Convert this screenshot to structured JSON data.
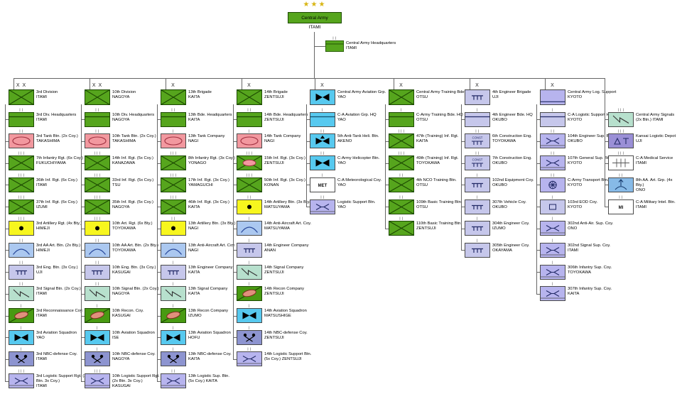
{
  "colors": {
    "unit_green": "#56a51d",
    "unit_green_dark": "#1d4a02",
    "armor_pink": "#f2989f",
    "armor_oval": "#a03040",
    "artillery_yellow": "#f7f61e",
    "air_defense_blue": "#abc8f0",
    "air_defense_glyph": "#2a4a9c",
    "engineer_lavender": "#c6c7eb",
    "engineer_glyph": "#222a66",
    "signal_teal": "#b7e0cd",
    "recon_green": "#489a12",
    "recon_oval": "#e0907c",
    "aviation_cyan": "#57c9ef",
    "nbc_periwinkle": "#8d94d0",
    "logistic_lavender": "#b7b4ee",
    "depot_purple": "#9a8fd6",
    "aa_group_blue": "#87bae7",
    "white": "#ffffff",
    "box_border": "#4a4a4a",
    "line": "#666666",
    "star_gold": "#d8b513",
    "text": "#000000"
  },
  "root": {
    "stars": "★★★",
    "name": "Central Army",
    "location": "ITAMI"
  },
  "headquarters": {
    "name": "Central Army Headquarters",
    "location": "ITAMI",
    "echelon": "| |",
    "symbol": "hq-green"
  },
  "columns": [
    {
      "head": {
        "name": "3rd Division",
        "location": "ITAMI",
        "symbol": "infantry",
        "echelon": "X X"
      },
      "units": [
        {
          "name": "3rd Div. Headquarters",
          "location": "ITAMI",
          "symbol": "hq-green",
          "echelon": "| |"
        },
        {
          "name": "3rd Tank Btn. (2x Coy.)",
          "location": "TAKASHIMA",
          "symbol": "armor",
          "echelon": "| |"
        },
        {
          "name": "7th Infantry Rgt. (6x Coy.)",
          "location": "FUKUCHIYAMA",
          "symbol": "infantry",
          "echelon": "| | |"
        },
        {
          "name": "36th Inf. Rgt. (6x Coy.)",
          "location": "ITAMI",
          "symbol": "infantry",
          "echelon": "| | |"
        },
        {
          "name": "37th Inf. Rgt. (6x Coy.)",
          "location": "IZUMI",
          "symbol": "infantry",
          "echelon": "| | |"
        },
        {
          "name": "3rd Artillery Rgt. (4x Bty.)",
          "location": "HIMEJI",
          "symbol": "artillery",
          "echelon": "| | |"
        },
        {
          "name": "3rd AA Art. Btn. (2x Bty.)",
          "location": "HIMEJI",
          "symbol": "air-defense",
          "echelon": "| |"
        },
        {
          "name": "3rd Eng. Btn. (3x Coy.)",
          "location": "UJI",
          "symbol": "engineer",
          "echelon": "| |"
        },
        {
          "name": "3rd Signal Btn. (2x Coy.)",
          "location": "ITAMI",
          "symbol": "signal",
          "echelon": "| |"
        },
        {
          "name": "3rd Reconnaissance Coy.",
          "location": "ITAMI",
          "symbol": "recon",
          "echelon": "|"
        },
        {
          "name": "3rd Aviation Squadron",
          "location": "YAO",
          "symbol": "aviation",
          "echelon": "|"
        },
        {
          "name": "3rd NBC-defense Coy.",
          "location": "ITAMI",
          "symbol": "nbc",
          "echelon": "|"
        },
        {
          "name": "3rd Logistic Support Rgt. (2x Btn. 3x Coy.)",
          "location": "ITAMI",
          "symbol": "logistic",
          "echelon": "| | |"
        }
      ]
    },
    {
      "head": {
        "name": "10th Division",
        "location": "NAGOYA",
        "symbol": "infantry",
        "echelon": "X X"
      },
      "units": [
        {
          "name": "10th Div. Headquarters",
          "location": "NAGOYA",
          "symbol": "hq-green",
          "echelon": "| |"
        },
        {
          "name": "10th Tank Btn. (2x Coy.)",
          "location": "TAKASHIMA",
          "symbol": "armor",
          "echelon": "| |"
        },
        {
          "name": "14th Inf. Rgt. (5x Coy.)",
          "location": "KANAZAWA",
          "symbol": "infantry",
          "echelon": "| | |"
        },
        {
          "name": "33rd Inf. Rgt. (5x Coy.)",
          "location": "TSU",
          "symbol": "infantry",
          "echelon": "| | |"
        },
        {
          "name": "35th Inf. Rgt. (5x Coy.)",
          "location": "NAGOYA",
          "symbol": "infantry",
          "echelon": "| | |"
        },
        {
          "name": "10th Art. Rgt. (6x Bty.)",
          "location": "TOYOKAWA",
          "symbol": "artillery",
          "echelon": "| | |"
        },
        {
          "name": "10th AA Art. Btn. (2x Bty.)",
          "location": "TOYOKAWA",
          "symbol": "air-defense",
          "echelon": "| |"
        },
        {
          "name": "10th Eng. Btn. (3x Coy.)",
          "location": "KASUGAI",
          "symbol": "engineer",
          "echelon": "| |"
        },
        {
          "name": "10th Signal Btn. (2x Coy.)",
          "location": "NAGOYA",
          "symbol": "signal",
          "echelon": "| |"
        },
        {
          "name": "10th Recon. Coy.",
          "location": "KASUGAI",
          "symbol": "recon",
          "echelon": "|"
        },
        {
          "name": "10th Aviation Squadron",
          "location": "ISE",
          "symbol": "aviation",
          "echelon": "|"
        },
        {
          "name": "10th NBC-defense Coy.",
          "location": "NAGOYA",
          "symbol": "nbc",
          "echelon": "|"
        },
        {
          "name": "10th Logistic Support Rgt. (2x Btn. 3x Coy.)",
          "location": "KASUGAI",
          "symbol": "logistic",
          "echelon": "| | |"
        }
      ]
    },
    {
      "head": {
        "name": "13th Brigade",
        "location": "KAITA",
        "symbol": "infantry",
        "echelon": "X"
      },
      "units": [
        {
          "name": "13th Bde. Headquarters",
          "location": "KAITA",
          "symbol": "hq-green",
          "echelon": "| |"
        },
        {
          "name": "13th Tank Company",
          "location": "NAGI",
          "symbol": "armor",
          "echelon": "|"
        },
        {
          "name": "8th Infantry Rgt. (3x Coy.)",
          "location": "YONAGO",
          "symbol": "infantry",
          "echelon": "| | |"
        },
        {
          "name": "17th Inf. Rgt. (3x Coy.)",
          "location": "YAMAGUCHI",
          "symbol": "infantry",
          "echelon": "| | |"
        },
        {
          "name": "46th Inf. Rgt. (3x Coy.)",
          "location": "KAITA",
          "symbol": "infantry",
          "echelon": "| | |"
        },
        {
          "name": "13th Artillery Btn. (3x Bty.)",
          "location": "NAGI",
          "symbol": "artillery",
          "echelon": "| |"
        },
        {
          "name": "13th Anti-Aircraft Art. Coy.",
          "location": "NAGI",
          "symbol": "air-defense",
          "echelon": "|"
        },
        {
          "name": "13th Engineer Company",
          "location": "KAITA",
          "symbol": "engineer",
          "echelon": "|"
        },
        {
          "name": "13th Signal Company",
          "location": "KAITA",
          "symbol": "signal",
          "echelon": "|"
        },
        {
          "name": "13th Recon Company",
          "location": "IZUMO",
          "symbol": "recon",
          "echelon": "|"
        },
        {
          "name": "13th Aviation Squadron",
          "location": "HOFU",
          "symbol": "aviation",
          "echelon": "|"
        },
        {
          "name": "13th NBC-defense Coy.",
          "location": "KAITA",
          "symbol": "nbc",
          "echelon": "|"
        },
        {
          "name": "13th Logistic Sup. Btn.",
          "location": "(5x Coy.) KAITA",
          "symbol": "logistic",
          "echelon": "| |"
        }
      ]
    },
    {
      "head": {
        "name": "14th Brigade",
        "location": "ZENTSUJI",
        "symbol": "infantry",
        "echelon": "X"
      },
      "units": [
        {
          "name": "14th Bde. Headquarters",
          "location": "ZENTSUJI",
          "symbol": "hq-green",
          "echelon": "| |"
        },
        {
          "name": "14th Tank Company",
          "location": "NAGI",
          "symbol": "armor",
          "echelon": "|"
        },
        {
          "name": "15th Inf. Rgt. (3x Coy.)",
          "location": "ZENTSUJI",
          "symbol": "mech-infantry",
          "echelon": "| | |"
        },
        {
          "name": "50th Inf. Rgt. (3x Coy.)",
          "location": "KONAN",
          "symbol": "infantry",
          "echelon": "| | |"
        },
        {
          "name": "14th Artillery Btn. (3x Bty.)",
          "location": "MATSUYAMA",
          "symbol": "artillery",
          "echelon": "| |"
        },
        {
          "name": "14th Anti-Aircraft Art. Coy.",
          "location": "MATSUYAMA",
          "symbol": "air-defense",
          "echelon": "|"
        },
        {
          "name": "14th Engineer Company",
          "location": "ANAN",
          "symbol": "engineer",
          "echelon": "|"
        },
        {
          "name": "14th Signal Company",
          "location": "ZENTSUJI",
          "symbol": "signal",
          "echelon": "|"
        },
        {
          "name": "14th Recon Company",
          "location": "ZENTSUJI",
          "symbol": "recon",
          "echelon": "|"
        },
        {
          "name": "14th Aviation Squadron",
          "location": "MATSUSHIGE",
          "symbol": "aviation",
          "echelon": "|"
        },
        {
          "name": "14th NBC-defense Coy.",
          "location": "ZENTSUJI",
          "symbol": "nbc",
          "echelon": "|"
        },
        {
          "name": "14th Logistic Support Btn.",
          "location": "(5x Coy.) ZENTSUJI",
          "symbol": "logistic",
          "echelon": "| |"
        }
      ]
    },
    {
      "head": {
        "name": "Central Army Aviation Grp.",
        "location": "YAO",
        "symbol": "aviation",
        "echelon": "X"
      },
      "units": [
        {
          "name": "C-A Aviation Grp. HQ",
          "location": "YAO",
          "symbol": "hq-cyan",
          "echelon": "|"
        },
        {
          "name": "5th Anti-Tank Heli. Btn.",
          "location": "AKENO",
          "symbol": "attack-helicopter",
          "echelon": "| |"
        },
        {
          "name": "C-Army Helicopter Btn.",
          "location": "YAO",
          "symbol": "aviation",
          "echelon": "| |"
        },
        {
          "name": "C-A Meteorological Coy.",
          "location": "YAO",
          "symbol": "met",
          "symbol_text": "MET",
          "echelon": "|"
        },
        {
          "name": "Logistic Support Btn.",
          "location": "YAO",
          "symbol": "logistic",
          "echelon": "| |"
        }
      ]
    },
    {
      "head": {
        "name": "Central Army Training Bde.",
        "location": "OTSU",
        "symbol": "infantry",
        "echelon": "X"
      },
      "units": [
        {
          "name": "C-Army Training Bde. HQ",
          "location": "OTSU",
          "symbol": "hq-green",
          "echelon": "|"
        },
        {
          "name": "47th (Training) Inf. Rgt.",
          "location": "KAITA",
          "symbol": "infantry",
          "echelon": "| | |"
        },
        {
          "name": "49th (Training) Inf. Rgt.",
          "location": "TOYOKAWA",
          "symbol": "infantry",
          "echelon": "| | |"
        },
        {
          "name": "4th NCO Training Btn.",
          "location": "OTSU",
          "symbol": "infantry",
          "echelon": "| |"
        },
        {
          "name": "109th Basic Training Btn.",
          "location": "OTSU",
          "symbol": "infantry",
          "echelon": "| |"
        },
        {
          "name": "110th Basic Training Btn.",
          "location": "ZENTSUJI",
          "symbol": "infantry",
          "echelon": "| |"
        }
      ]
    },
    {
      "head": {
        "name": "4th Engineer Brigade",
        "location": "UJI",
        "symbol": "engineer",
        "echelon": "X"
      },
      "units": [
        {
          "name": "4th Engineer Bde. HQ",
          "location": "OKUBO",
          "symbol": "hq-lavender",
          "echelon": "|"
        },
        {
          "name": "6th Construction Eng.",
          "location": "TOYOKAWA",
          "symbol": "construction-engineer",
          "symbol_text": "CONST",
          "echelon": "| |"
        },
        {
          "name": "7th Construction Eng.",
          "location": "OKUBO",
          "symbol": "construction-engineer",
          "symbol_text": "CONST",
          "echelon": "| |"
        },
        {
          "name": "102nd Equipment Coy.",
          "location": "OKUBO",
          "symbol": "engineer",
          "echelon": "|"
        },
        {
          "name": "307th Vehicle Coy.",
          "location": "OKUBO",
          "symbol": "engineer",
          "echelon": "|"
        },
        {
          "name": "304th Engineer Coy.",
          "location": "IZUMO",
          "symbol": "engineer",
          "echelon": "|"
        },
        {
          "name": "305th Engineer Coy.",
          "location": "OKAYAMA",
          "symbol": "engineer",
          "echelon": "|"
        }
      ]
    },
    {
      "head": {
        "name": "Central Army Log. Support",
        "location": "KYOTO",
        "symbol": "logistic-head",
        "echelon": "X"
      },
      "units": [
        {
          "name": "C-A Logistic Support HQ",
          "location": "KYOTO",
          "symbol": "hq-lavender",
          "echelon": "|"
        },
        {
          "name": "104th Engineer Sup. Btn.",
          "location": "OKUBO",
          "symbol": "logistic",
          "echelon": "| |"
        },
        {
          "name": "107th General Sup. Btn.",
          "location": "KYOTO",
          "symbol": "logistic",
          "echelon": "| |"
        },
        {
          "name": "C-Army Transport Btn.",
          "location": "KYOTO",
          "symbol": "transport",
          "echelon": "| |"
        },
        {
          "name": "103rd EOD Coy.",
          "location": "KYOTO",
          "symbol": "eod",
          "echelon": "|"
        },
        {
          "name": "302nd Anti-Air. Sup. Coy.",
          "location": "ONO",
          "symbol": "logistic",
          "echelon": "|"
        },
        {
          "name": "302nd Signal Sup. Coy.",
          "location": "ITAMI",
          "symbol": "logistic",
          "echelon": "|"
        },
        {
          "name": "306th Infantry Sup. Coy.",
          "location": "TOYOKAWA",
          "symbol": "logistic",
          "echelon": "|"
        },
        {
          "name": "307th Infantry Sup. Coy.",
          "location": "KAITA",
          "symbol": "logistic",
          "echelon": "|"
        }
      ]
    },
    {
      "head": null,
      "units": [
        {
          "name": "Central Army Signals",
          "location": "(2x Btn.) ITAMI",
          "symbol": "signal",
          "echelon": "| | |"
        },
        {
          "name": "Kansai Logistic Depot",
          "location": "UJI",
          "symbol": "depot",
          "echelon": "| | |"
        },
        {
          "name": "C-A Medical Service",
          "location": "ITAMI",
          "symbol": "medical",
          "echelon": "| | |"
        },
        {
          "name": "8th AA. Art. Grp. (4x Bty.)",
          "location": "ONO",
          "symbol": "aa-group",
          "echelon": "| |"
        },
        {
          "name": "C-A Military Intel. Btn.",
          "location": "ITAMI",
          "symbol": "mi",
          "symbol_text": "MI",
          "echelon": "| |"
        }
      ]
    }
  ]
}
